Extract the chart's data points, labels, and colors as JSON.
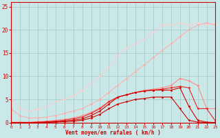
{
  "bg_color": "#cbe8e8",
  "grid_color": "#a0c8c0",
  "line_color_dark_red": "#cc0000",
  "line_color_red": "#ee2222",
  "line_color_light_red": "#ff8888",
  "line_color_pink": "#ffaaaa",
  "line_color_lightest": "#ffcccc",
  "xlabel": "Vent moyen/en rafales ( km/h )",
  "ylabel_ticks": [
    0,
    5,
    10,
    15,
    20,
    25
  ],
  "xlim": [
    0,
    23
  ],
  "ylim": [
    0,
    26
  ],
  "x": [
    0,
    1,
    2,
    3,
    4,
    5,
    6,
    7,
    8,
    9,
    10,
    11,
    12,
    13,
    14,
    15,
    16,
    17,
    18,
    19,
    20,
    21,
    22,
    23
  ],
  "s1_y": [
    5.3,
    3.0,
    2.5,
    2.8,
    3.5,
    4.5,
    5.0,
    5.8,
    7.0,
    8.5,
    10.0,
    12.0,
    14.5,
    16.0,
    17.0,
    18.0,
    19.5,
    21.0,
    21.0,
    21.5,
    21.0,
    21.5,
    21.0,
    21.5
  ],
  "s2_y": [
    3.0,
    1.5,
    1.0,
    1.0,
    1.2,
    1.5,
    2.0,
    2.5,
    3.0,
    4.0,
    5.0,
    6.5,
    8.0,
    9.5,
    11.0,
    12.5,
    14.0,
    15.5,
    17.0,
    18.5,
    20.0,
    21.0,
    21.5,
    21.0
  ],
  "s3_y": [
    0.1,
    0.1,
    0.1,
    0.2,
    0.3,
    0.5,
    0.7,
    1.0,
    1.5,
    2.2,
    3.2,
    4.5,
    5.5,
    6.0,
    6.5,
    7.0,
    7.2,
    7.5,
    8.0,
    9.5,
    9.0,
    8.0,
    3.0,
    3.0
  ],
  "s4_y": [
    0.0,
    0.0,
    0.0,
    0.1,
    0.2,
    0.3,
    0.5,
    0.8,
    1.2,
    2.0,
    3.0,
    4.5,
    5.5,
    6.0,
    6.5,
    6.8,
    7.0,
    7.2,
    7.5,
    7.8,
    7.5,
    3.0,
    3.0,
    0.3
  ],
  "s5_y": [
    0.0,
    0.0,
    0.0,
    0.0,
    0.1,
    0.2,
    0.3,
    0.5,
    0.8,
    1.5,
    2.5,
    4.0,
    5.5,
    6.0,
    6.5,
    6.8,
    7.0,
    7.0,
    7.0,
    7.5,
    3.5,
    0.5,
    0.1,
    0.0
  ],
  "s6_y": [
    0.0,
    0.0,
    0.0,
    0.0,
    0.0,
    0.1,
    0.2,
    0.3,
    0.5,
    1.0,
    1.8,
    3.0,
    4.0,
    4.5,
    5.0,
    5.2,
    5.5,
    5.5,
    5.5,
    3.0,
    0.5,
    0.1,
    0.0,
    0.0
  ]
}
